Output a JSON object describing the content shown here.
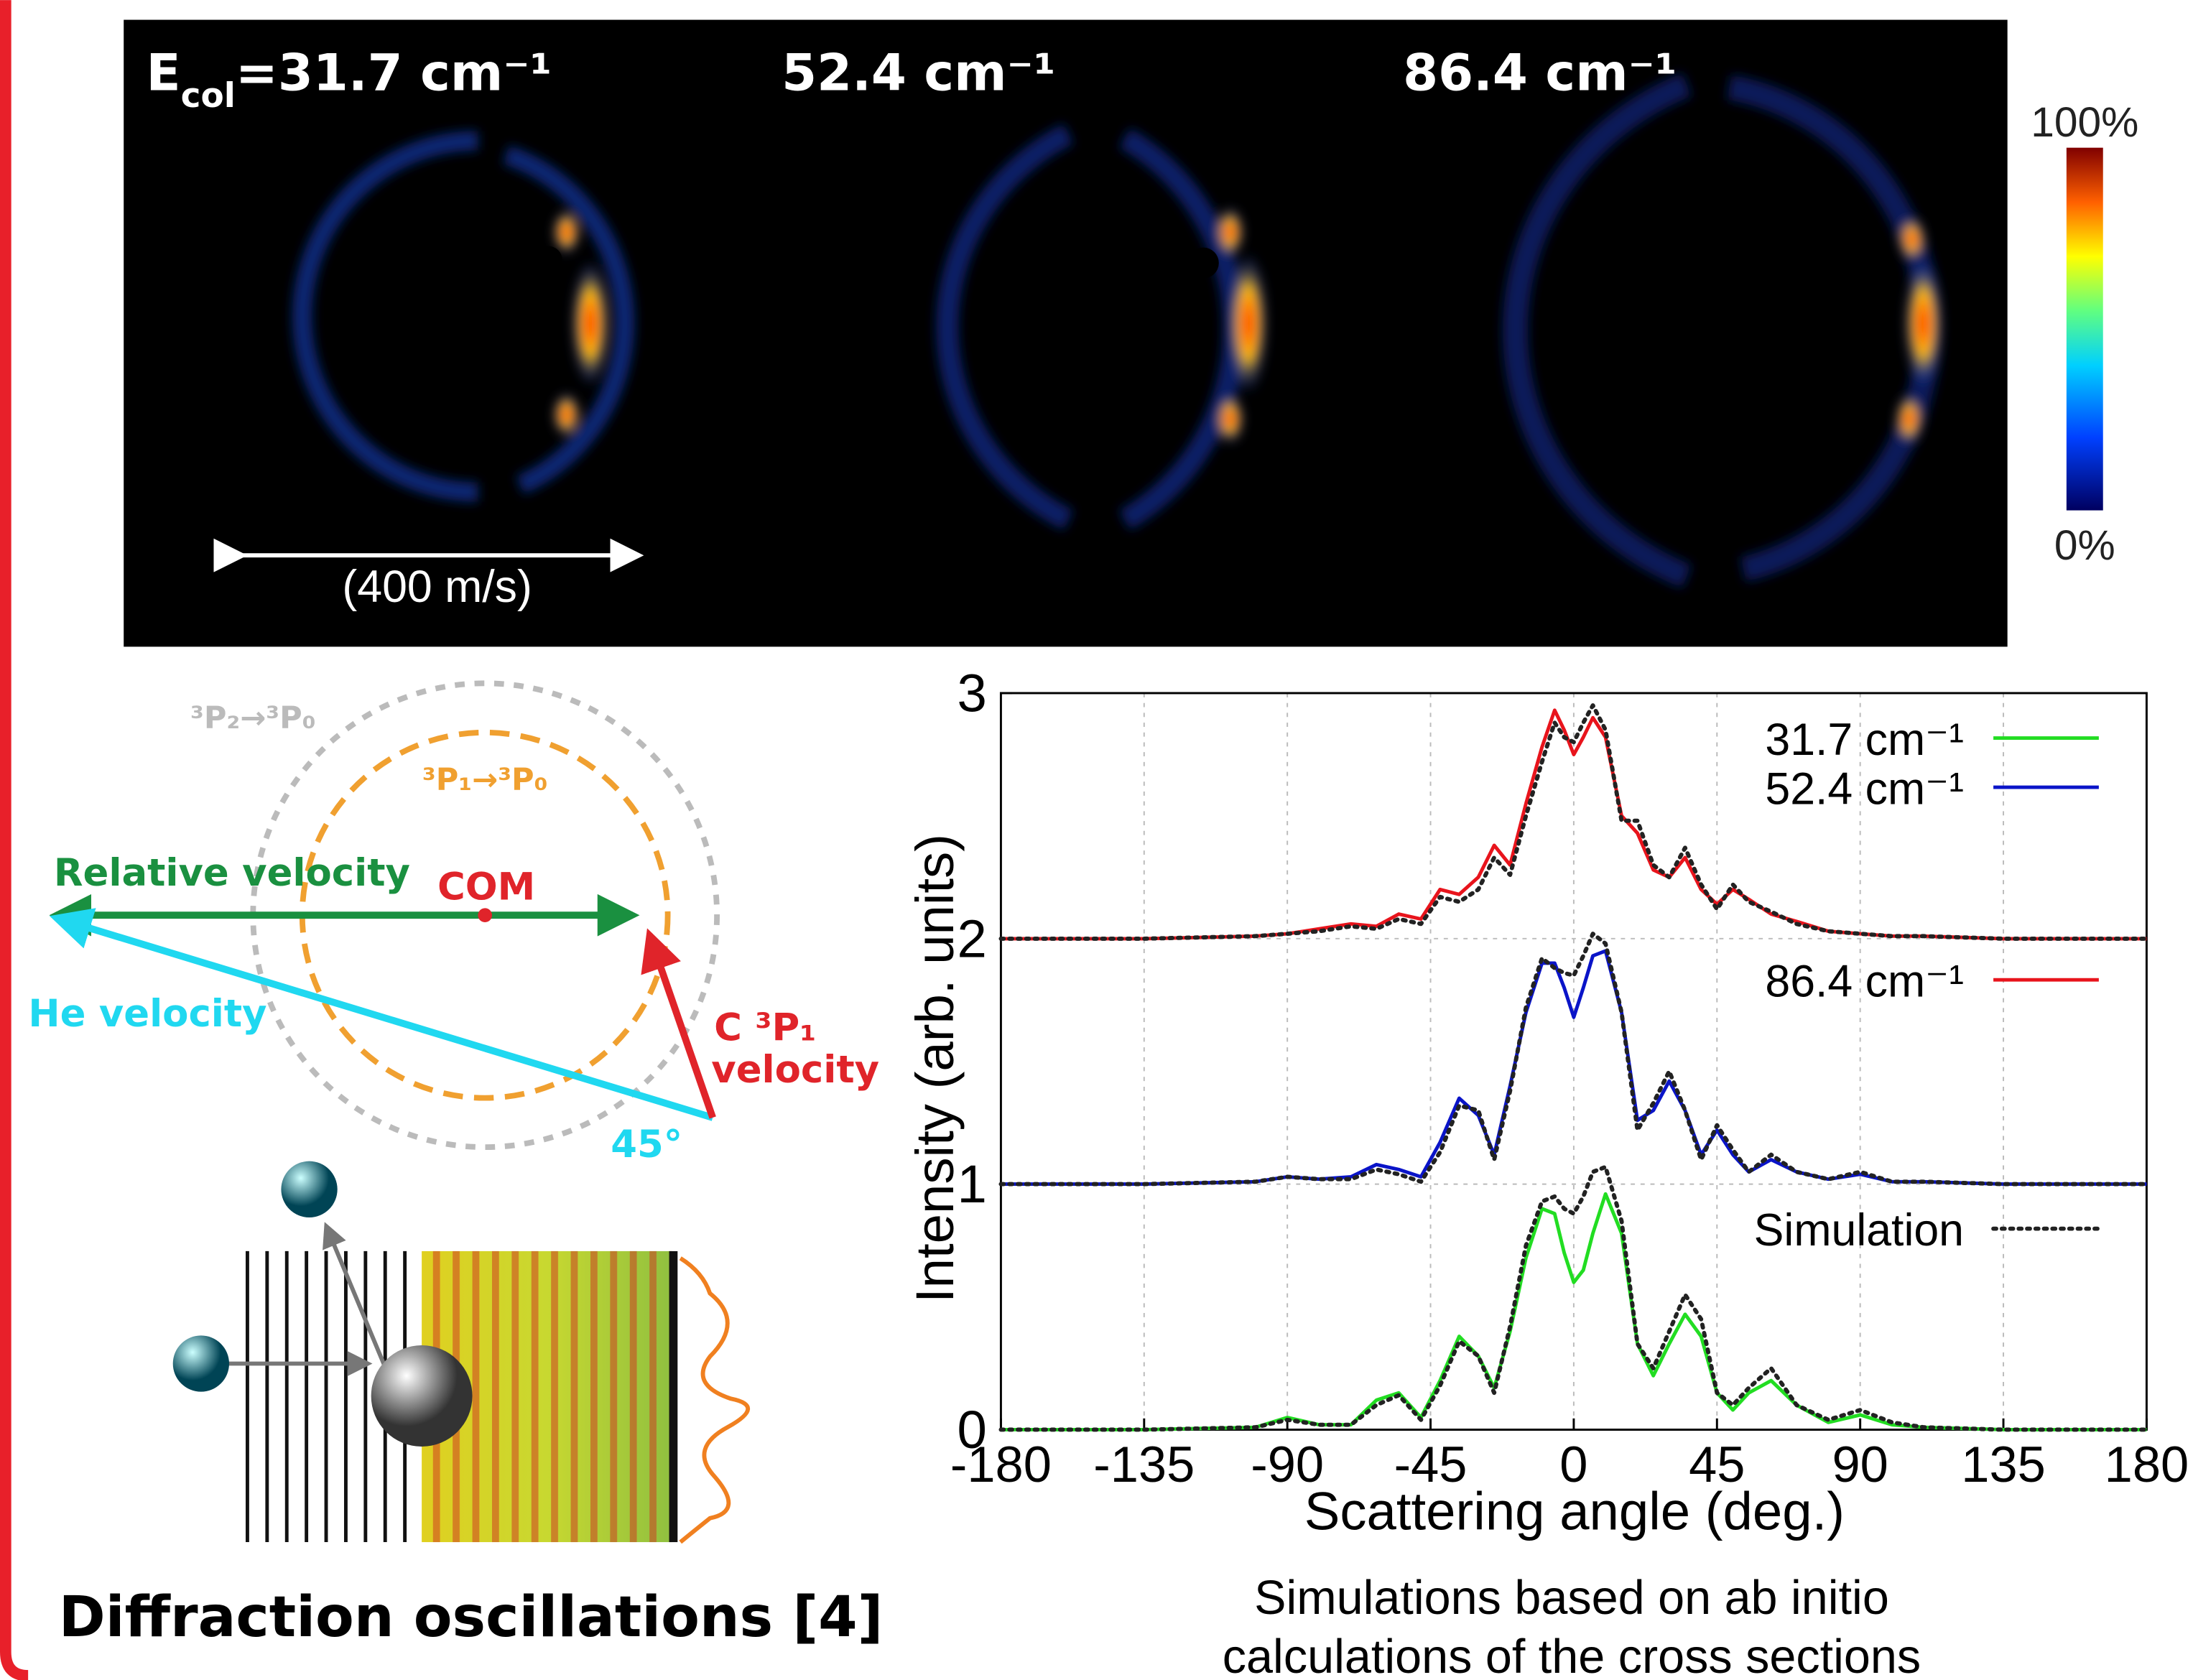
{
  "images": {
    "labels": [
      {
        "main": "E",
        "sub": "col",
        "rest": "=31.7 cm⁻¹"
      },
      {
        "rest": "52.4 cm⁻¹"
      },
      {
        "rest": "86.4 cm⁻¹"
      }
    ],
    "scale_bar": "(400 m/s)",
    "colorbar": {
      "max": "100%",
      "min": "0%"
    }
  },
  "diagram": {
    "outer_ring": "³P₂→³P₀",
    "inner_ring": "³P₁→³P₀",
    "relative_velocity": "Relative velocity",
    "com": "COM",
    "he_velocity": "He velocity",
    "c_velocity": [
      "C ³P₁",
      "velocity"
    ],
    "angle": "45°",
    "title": "Diffraction oscillations [4]"
  },
  "caption": [
    "Simulations based on ab initio",
    "calculations of the cross sections"
  ],
  "chart_data": {
    "type": "line",
    "xlabel": "Scattering angle (deg.)",
    "ylabel": "Intensity (arb. units)",
    "x": [
      -180,
      -135,
      -100,
      -90,
      -80,
      -70,
      -62,
      -55,
      -48,
      -42,
      -36,
      -30,
      -25,
      -20,
      -15,
      -10,
      -6,
      -3,
      0,
      3,
      6,
      10,
      15,
      20,
      25,
      30,
      35,
      40,
      45,
      50,
      55,
      62,
      70,
      80,
      90,
      100,
      110,
      135,
      180
    ],
    "series": [
      {
        "name": "86.4 cm⁻¹",
        "color": "#e8141c",
        "style": "solid",
        "values": [
          2,
          2,
          2.01,
          2.02,
          2.04,
          2.06,
          2.05,
          2.1,
          2.08,
          2.2,
          2.18,
          2.25,
          2.38,
          2.3,
          2.55,
          2.78,
          2.93,
          2.85,
          2.75,
          2.82,
          2.9,
          2.82,
          2.5,
          2.43,
          2.28,
          2.25,
          2.33,
          2.2,
          2.14,
          2.2,
          2.16,
          2.1,
          2.07,
          2.03,
          2.02,
          2.01,
          2.01,
          2,
          2
        ]
      },
      {
        "name": "Simulation",
        "color": "#222222",
        "style": "dotted",
        "values": [
          2,
          2,
          2.01,
          2.02,
          2.03,
          2.05,
          2.04,
          2.08,
          2.06,
          2.17,
          2.15,
          2.2,
          2.33,
          2.26,
          2.5,
          2.72,
          2.88,
          2.82,
          2.8,
          2.88,
          2.95,
          2.85,
          2.48,
          2.48,
          2.3,
          2.25,
          2.37,
          2.22,
          2.12,
          2.22,
          2.15,
          2.11,
          2.06,
          2.03,
          2.02,
          2.01,
          2.01,
          2,
          2
        ]
      },
      {
        "name": "52.4 cm⁻¹",
        "color": "#0a14c8",
        "style": "solid",
        "values": [
          1,
          1,
          1.01,
          1.03,
          1.02,
          1.03,
          1.08,
          1.06,
          1.03,
          1.17,
          1.35,
          1.28,
          1.12,
          1.4,
          1.7,
          1.9,
          1.9,
          1.8,
          1.68,
          1.8,
          1.93,
          1.95,
          1.7,
          1.26,
          1.3,
          1.42,
          1.3,
          1.12,
          1.22,
          1.12,
          1.05,
          1.1,
          1.05,
          1.02,
          1.04,
          1.01,
          1.01,
          1,
          1
        ]
      },
      {
        "color": "#222222",
        "style": "dotted",
        "values": [
          1,
          1,
          1.01,
          1.03,
          1.02,
          1.02,
          1.06,
          1.04,
          1.01,
          1.13,
          1.32,
          1.3,
          1.1,
          1.38,
          1.72,
          1.92,
          1.88,
          1.86,
          1.85,
          1.93,
          2.02,
          1.98,
          1.7,
          1.22,
          1.33,
          1.46,
          1.3,
          1.1,
          1.24,
          1.14,
          1.05,
          1.12,
          1.05,
          1.02,
          1.05,
          1.01,
          1.01,
          1,
          1
        ]
      },
      {
        "name": "31.7 cm⁻¹",
        "color": "#22dd22",
        "style": "solid",
        "values": [
          0,
          0,
          0.01,
          0.05,
          0.02,
          0.02,
          0.12,
          0.15,
          0.05,
          0.2,
          0.38,
          0.3,
          0.17,
          0.4,
          0.7,
          0.9,
          0.88,
          0.72,
          0.6,
          0.65,
          0.8,
          0.96,
          0.8,
          0.35,
          0.22,
          0.35,
          0.47,
          0.38,
          0.15,
          0.08,
          0.15,
          0.2,
          0.1,
          0.03,
          0.06,
          0.02,
          0.01,
          0,
          0
        ]
      },
      {
        "color": "#222222",
        "style": "dotted",
        "values": [
          0,
          0,
          0.01,
          0.04,
          0.02,
          0.02,
          0.1,
          0.14,
          0.04,
          0.18,
          0.36,
          0.3,
          0.15,
          0.42,
          0.75,
          0.93,
          0.95,
          0.9,
          0.88,
          0.95,
          1.05,
          1.07,
          0.85,
          0.35,
          0.25,
          0.4,
          0.55,
          0.45,
          0.15,
          0.1,
          0.17,
          0.25,
          0.1,
          0.04,
          0.08,
          0.03,
          0.01,
          0,
          0
        ]
      }
    ],
    "xlim": [
      -180,
      180
    ],
    "xticks": [
      -180,
      -135,
      -90,
      -45,
      0,
      45,
      90,
      135,
      180
    ],
    "ylim": [
      0,
      3
    ],
    "yticks": [
      0,
      1,
      2,
      3
    ],
    "grid": true
  }
}
